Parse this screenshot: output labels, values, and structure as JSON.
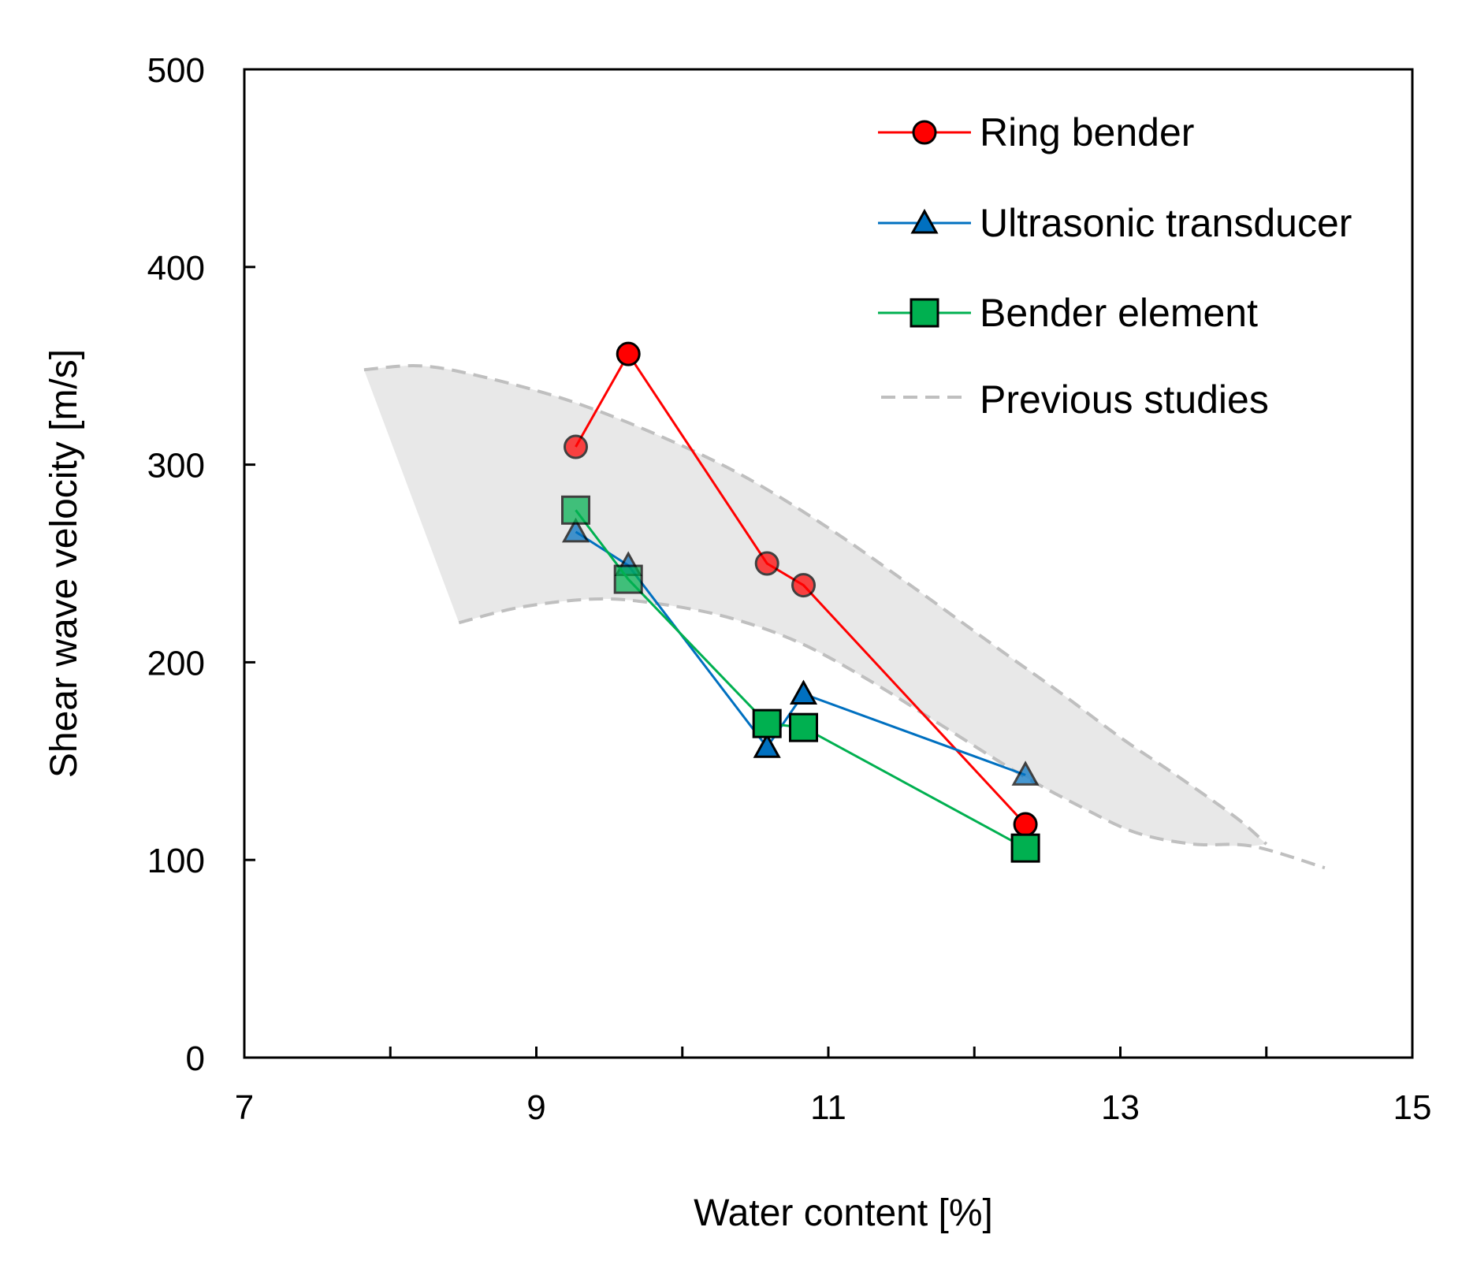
{
  "chart_data": {
    "type": "scatter",
    "xlabel": "Water content [%]",
    "ylabel": "Shear wave velocity [m/s]",
    "xlim": [
      7,
      15
    ],
    "ylim": [
      0,
      500
    ],
    "xticks": [
      7,
      9,
      11,
      13,
      15
    ],
    "xminor_ticks": [
      8,
      10,
      12,
      14
    ],
    "yticks": [
      0,
      100,
      200,
      300,
      400,
      500
    ],
    "grid": false,
    "legend_position": "top-right",
    "series": [
      {
        "name": "Ring bender",
        "marker": "circle",
        "color": "#ff0000",
        "x": [
          9.27,
          9.63,
          10.58,
          10.83,
          12.35
        ],
        "y": [
          309,
          356,
          250,
          239,
          118
        ]
      },
      {
        "name": "Ultrasonic transducer",
        "marker": "triangle",
        "color": "#0070c0",
        "x": [
          9.27,
          9.63,
          10.58,
          10.83,
          12.35
        ],
        "y": [
          266,
          249,
          157,
          184,
          143
        ]
      },
      {
        "name": "Bender element",
        "marker": "square",
        "color": "#00b050",
        "x": [
          9.27,
          9.63,
          10.58,
          10.83,
          12.35
        ],
        "y": [
          277,
          242,
          169,
          167,
          106
        ]
      }
    ],
    "reference_band": {
      "name": "Previous studies",
      "color": "#bfbfbf",
      "fill": "#e8e8e8",
      "upper": {
        "x": [
          7.82,
          8.2,
          8.6,
          9.2,
          9.8,
          10.4,
          11.0,
          11.6,
          12.2,
          12.6,
          13.0,
          13.4,
          13.8,
          14.0
        ],
        "y": [
          348,
          350,
          345,
          333,
          316,
          295,
          268,
          237,
          205,
          184,
          162,
          142,
          121,
          108
        ]
      },
      "lower": {
        "x": [
          8.47,
          8.9,
          9.4,
          9.8,
          10.3,
          10.8,
          11.3,
          11.8,
          12.3,
          12.7,
          13.1,
          13.5,
          13.9,
          14.4
        ],
        "y": [
          220,
          228,
          232,
          230,
          223,
          210,
          190,
          167,
          144,
          128,
          114,
          108,
          107,
          96
        ]
      },
      "fill_until_x": 14.0
    }
  }
}
